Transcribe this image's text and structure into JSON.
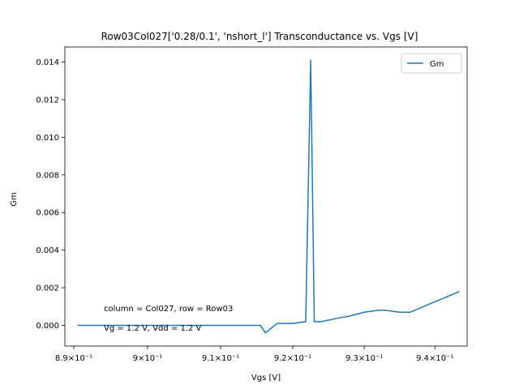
{
  "chart_data": {
    "type": "line",
    "title": "Row03Col027['0.28/0.1', 'nshort_l'] Transconductance vs. Vgs [V]",
    "xlabel": "Vgs [V]",
    "ylabel": "Gm",
    "xscale": "log",
    "xlim": [
      0.8888,
      0.9446
    ],
    "ylim": [
      -0.0011,
      0.0148
    ],
    "x_ticks": [
      {
        "value": 0.89,
        "label": "8.9×10⁻¹"
      },
      {
        "value": 0.9,
        "label": "9×10⁻¹"
      },
      {
        "value": 0.91,
        "label": "9.1×10⁻¹"
      },
      {
        "value": 0.92,
        "label": "9.2×10⁻¹"
      },
      {
        "value": 0.93,
        "label": "9.3×10⁻¹"
      },
      {
        "value": 0.94,
        "label": "9.4×10⁻¹"
      }
    ],
    "y_ticks": [
      {
        "value": 0.0,
        "label": "0.000"
      },
      {
        "value": 0.002,
        "label": "0.002"
      },
      {
        "value": 0.004,
        "label": "0.004"
      },
      {
        "value": 0.006,
        "label": "0.006"
      },
      {
        "value": 0.008,
        "label": "0.008"
      },
      {
        "value": 0.01,
        "label": "0.010"
      },
      {
        "value": 0.012,
        "label": "0.012"
      },
      {
        "value": 0.014,
        "label": "0.014"
      }
    ],
    "grid": false,
    "legend": {
      "placement": "top-right"
    },
    "annotations": [
      "column = Col027, row = Row03",
      "Vg = 1.2 V, Vdd = 1.2 V"
    ],
    "series": [
      {
        "name": "Gm",
        "color": "#1f77b4",
        "x": [
          0.8905,
          0.8912,
          0.892,
          0.895,
          0.9,
          0.905,
          0.91,
          0.9155,
          0.9162,
          0.9178,
          0.92,
          0.9218,
          0.9225,
          0.923,
          0.924,
          0.9265,
          0.928,
          0.93,
          0.932,
          0.933,
          0.935,
          0.9365,
          0.9435
        ],
        "y": [
          0.0,
          0.0,
          0.0,
          0.0,
          0.0,
          0.0,
          0.0,
          0.0,
          -0.0004,
          0.0001,
          0.0001,
          0.0002,
          0.0141,
          0.0002,
          0.0002,
          0.0004,
          0.0005,
          0.0007,
          0.0008,
          0.0008,
          0.0007,
          0.0007,
          0.0018
        ]
      }
    ]
  }
}
